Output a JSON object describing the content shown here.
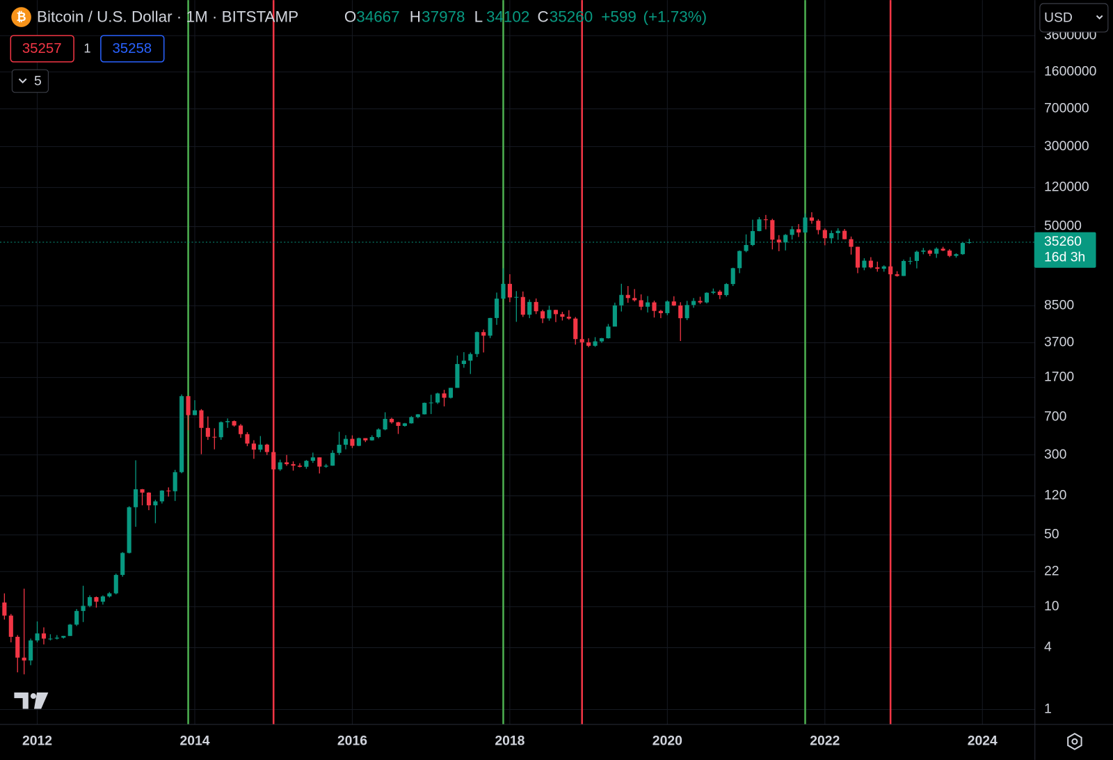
{
  "chart_data": {
    "type": "candlestick",
    "title": "Bitcoin / U.S. Dollar · 1M · BITSTAMP",
    "ohlc_legend": [
      {
        "label": "O",
        "value": 34667
      },
      {
        "label": "H",
        "value": 37978
      },
      {
        "label": "L",
        "value": 34102
      },
      {
        "label": "C",
        "value": 35260
      }
    ],
    "change": {
      "value": 599,
      "label": "+599"
    },
    "change_pct": {
      "value": 1.73,
      "label": "(+1.73%)"
    },
    "sell_price": 35257,
    "quantity": 1,
    "buy_price": 35258,
    "indicators_count": 5,
    "currency": "USD",
    "last_price": 35260,
    "countdown": "16d 3h",
    "up_color": "#089981",
    "down_color": "#f23645",
    "log_scale": true,
    "grid": true,
    "ylim": [
      0.716,
      8000000
    ],
    "yticks": [
      1,
      4,
      10,
      22,
      50,
      120,
      300,
      700,
      1700,
      3700,
      8500,
      50000,
      120000,
      300000,
      700000,
      1600000,
      3600000
    ],
    "xlim": [
      "2011-07",
      "2024-09"
    ],
    "xticks": [
      2012,
      2014,
      2016,
      2018,
      2020,
      2022,
      2024
    ],
    "vlines": [
      {
        "x": "2013-12",
        "color": "#4caf50"
      },
      {
        "x": "2015-01",
        "color": "#f23645"
      },
      {
        "x": "2017-12",
        "color": "#4caf50"
      },
      {
        "x": "2018-12",
        "color": "#f23645"
      },
      {
        "x": "2021-10",
        "color": "#4caf50"
      },
      {
        "x": "2022-11",
        "color": "#f23645"
      }
    ],
    "x": [
      "2011-08",
      "2011-09",
      "2011-10",
      "2011-11",
      "2011-12",
      "2012-01",
      "2012-02",
      "2012-03",
      "2012-04",
      "2012-05",
      "2012-06",
      "2012-07",
      "2012-08",
      "2012-09",
      "2012-10",
      "2012-11",
      "2012-12",
      "2013-01",
      "2013-02",
      "2013-03",
      "2013-04",
      "2013-05",
      "2013-06",
      "2013-07",
      "2013-08",
      "2013-09",
      "2013-10",
      "2013-11",
      "2013-12",
      "2014-01",
      "2014-02",
      "2014-03",
      "2014-04",
      "2014-05",
      "2014-06",
      "2014-07",
      "2014-08",
      "2014-09",
      "2014-10",
      "2014-11",
      "2014-12",
      "2015-01",
      "2015-02",
      "2015-03",
      "2015-04",
      "2015-05",
      "2015-06",
      "2015-07",
      "2015-08",
      "2015-09",
      "2015-10",
      "2015-11",
      "2015-12",
      "2016-01",
      "2016-02",
      "2016-03",
      "2016-04",
      "2016-05",
      "2016-06",
      "2016-07",
      "2016-08",
      "2016-09",
      "2016-10",
      "2016-11",
      "2016-12",
      "2017-01",
      "2017-02",
      "2017-03",
      "2017-04",
      "2017-05",
      "2017-06",
      "2017-07",
      "2017-08",
      "2017-09",
      "2017-10",
      "2017-11",
      "2017-12",
      "2018-01",
      "2018-02",
      "2018-03",
      "2018-04",
      "2018-05",
      "2018-06",
      "2018-07",
      "2018-08",
      "2018-09",
      "2018-10",
      "2018-11",
      "2018-12",
      "2019-01",
      "2019-02",
      "2019-03",
      "2019-04",
      "2019-05",
      "2019-06",
      "2019-07",
      "2019-08",
      "2019-09",
      "2019-10",
      "2019-11",
      "2019-12",
      "2020-01",
      "2020-02",
      "2020-03",
      "2020-04",
      "2020-05",
      "2020-06",
      "2020-07",
      "2020-08",
      "2020-09",
      "2020-10",
      "2020-11",
      "2020-12",
      "2021-01",
      "2021-02",
      "2021-03",
      "2021-04",
      "2021-05",
      "2021-06",
      "2021-07",
      "2021-08",
      "2021-09",
      "2021-10",
      "2021-11",
      "2021-12",
      "2022-01",
      "2022-02",
      "2022-03",
      "2022-04",
      "2022-05",
      "2022-06",
      "2022-07",
      "2022-08",
      "2022-09",
      "2022-10",
      "2022-11",
      "2022-12",
      "2023-01",
      "2023-02",
      "2023-03",
      "2023-04",
      "2023-05",
      "2023-06",
      "2023-07",
      "2023-08",
      "2023-09",
      "2023-10",
      "2023-11"
    ],
    "ohlc": [
      [
        11,
        13.5,
        7.5,
        8.2
      ],
      [
        8.2,
        8.5,
        4.5,
        5.1
      ],
      [
        5.1,
        5.3,
        2.3,
        3.2
      ],
      [
        3.2,
        15,
        2.2,
        3.0
      ],
      [
        3.0,
        4.9,
        2.7,
        4.7
      ],
      [
        4.7,
        7.2,
        4.5,
        5.5
      ],
      [
        5.5,
        6.3,
        4.3,
        4.9
      ],
      [
        4.9,
        5.4,
        4.7,
        4.9
      ],
      [
        4.9,
        5.3,
        4.8,
        5.0
      ],
      [
        5.0,
        5.2,
        4.9,
        5.2
      ],
      [
        5.2,
        6.8,
        5.2,
        6.7
      ],
      [
        6.7,
        9.5,
        6.5,
        9.1
      ],
      [
        9.1,
        16,
        7.1,
        10.2
      ],
      [
        10.2,
        12.9,
        9.9,
        12.4
      ],
      [
        12.4,
        12.6,
        9.8,
        11.2
      ],
      [
        11.2,
        12.9,
        10.5,
        12.6
      ],
      [
        12.6,
        13.9,
        12.3,
        13.5
      ],
      [
        13.5,
        21,
        13.2,
        20.4
      ],
      [
        20.4,
        34,
        19.6,
        33.4
      ],
      [
        33.4,
        95,
        33,
        93
      ],
      [
        93,
        266,
        60,
        139
      ],
      [
        139,
        140,
        97,
        129
      ],
      [
        129,
        130,
        87,
        97
      ],
      [
        97,
        110,
        65,
        106
      ],
      [
        106,
        136,
        101,
        135
      ],
      [
        135,
        145,
        118,
        133
      ],
      [
        133,
        215,
        107,
        204
      ],
      [
        204,
        1163,
        199,
        1120
      ],
      [
        1120,
        1125,
        522,
        732
      ],
      [
        732,
        1022,
        730,
        815
      ],
      [
        815,
        838,
        305,
        550
      ],
      [
        550,
        710,
        420,
        450
      ],
      [
        450,
        545,
        340,
        446
      ],
      [
        446,
        635,
        421,
        625
      ],
      [
        625,
        680,
        550,
        640
      ],
      [
        640,
        650,
        565,
        580
      ],
      [
        580,
        600,
        440,
        478
      ],
      [
        478,
        500,
        365,
        387
      ],
      [
        387,
        417,
        275,
        338
      ],
      [
        338,
        458,
        320,
        378
      ],
      [
        378,
        385,
        300,
        320
      ],
      [
        320,
        320,
        152,
        217
      ],
      [
        217,
        270,
        210,
        254
      ],
      [
        254,
        300,
        235,
        244
      ],
      [
        244,
        260,
        211,
        236
      ],
      [
        236,
        249,
        227,
        230
      ],
      [
        230,
        268,
        220,
        263
      ],
      [
        263,
        316,
        251,
        284
      ],
      [
        284,
        284,
        198,
        231
      ],
      [
        231,
        245,
        225,
        236
      ],
      [
        236,
        333,
        235,
        314
      ],
      [
        314,
        504,
        300,
        377
      ],
      [
        377,
        467,
        340,
        430
      ],
      [
        430,
        465,
        350,
        368
      ],
      [
        368,
        442,
        365,
        437
      ],
      [
        437,
        437,
        400,
        416
      ],
      [
        416,
        466,
        413,
        448
      ],
      [
        448,
        545,
        436,
        531
      ],
      [
        531,
        780,
        521,
        673
      ],
      [
        673,
        690,
        605,
        624
      ],
      [
        624,
        630,
        480,
        575
      ],
      [
        575,
        615,
        566,
        609
      ],
      [
        609,
        717,
        605,
        700
      ],
      [
        700,
        750,
        682,
        745
      ],
      [
        745,
        970,
        742,
        964
      ],
      [
        964,
        1155,
        750,
        970
      ],
      [
        970,
        1210,
        940,
        1190
      ],
      [
        1190,
        1290,
        890,
        1080
      ],
      [
        1080,
        1350,
        1063,
        1348
      ],
      [
        1348,
        2780,
        1350,
        2300
      ],
      [
        2300,
        3000,
        2115,
        2480
      ],
      [
        2480,
        2980,
        1840,
        2875
      ],
      [
        2875,
        4760,
        2690,
        4700
      ],
      [
        4700,
        4980,
        2980,
        4340
      ],
      [
        4340,
        6470,
        4110,
        6450
      ],
      [
        6450,
        11400,
        5530,
        9950
      ],
      [
        9950,
        19666,
        9890,
        13860
      ],
      [
        13860,
        17200,
        9200,
        10220
      ],
      [
        10220,
        11780,
        5920,
        10330
      ],
      [
        10330,
        11680,
        6600,
        6940
      ],
      [
        6940,
        9760,
        6430,
        9240
      ],
      [
        9240,
        9990,
        7040,
        7500
      ],
      [
        7500,
        7760,
        5750,
        6390
      ],
      [
        6390,
        8500,
        6070,
        7730
      ],
      [
        7730,
        7760,
        5880,
        7030
      ],
      [
        7030,
        7410,
        6100,
        6630
      ],
      [
        6630,
        7680,
        6200,
        6370
      ],
      [
        6370,
        6590,
        3550,
        4020
      ],
      [
        4020,
        4240,
        3150,
        3740
      ],
      [
        3740,
        4090,
        3350,
        3460
      ],
      [
        3460,
        4200,
        3380,
        3820
      ],
      [
        3820,
        4130,
        3700,
        4100
      ],
      [
        4100,
        5640,
        4070,
        5320
      ],
      [
        5320,
        9100,
        5340,
        8560
      ],
      [
        8560,
        13880,
        7460,
        10820
      ],
      [
        10820,
        13200,
        9070,
        10080
      ],
      [
        10080,
        12330,
        9330,
        9600
      ],
      [
        9600,
        10950,
        7710,
        8300
      ],
      [
        8300,
        10540,
        7300,
        9150
      ],
      [
        9150,
        9510,
        6520,
        7560
      ],
      [
        7560,
        7740,
        6430,
        7190
      ],
      [
        7190,
        9580,
        6870,
        9350
      ],
      [
        9350,
        10500,
        8440,
        8540
      ],
      [
        8540,
        9180,
        3850,
        6420
      ],
      [
        6420,
        9470,
        6150,
        8630
      ],
      [
        8630,
        10080,
        8110,
        9450
      ],
      [
        9450,
        10380,
        8830,
        9140
      ],
      [
        9140,
        11480,
        8930,
        11350
      ],
      [
        11350,
        12480,
        10980,
        11650
      ],
      [
        11650,
        12070,
        9850,
        10780
      ],
      [
        10780,
        14100,
        10420,
        13800
      ],
      [
        13800,
        19900,
        13200,
        19700
      ],
      [
        19700,
        29300,
        17600,
        28950
      ],
      [
        28950,
        41970,
        28130,
        33100
      ],
      [
        33100,
        58350,
        32300,
        45200
      ],
      [
        45200,
        61780,
        45000,
        58800
      ],
      [
        58800,
        64900,
        47000,
        57800
      ],
      [
        57800,
        59500,
        30000,
        37300
      ],
      [
        37300,
        41300,
        28800,
        35040
      ],
      [
        35040,
        42300,
        29300,
        41500
      ],
      [
        41500,
        50500,
        37400,
        47100
      ],
      [
        47100,
        52900,
        39600,
        43800
      ],
      [
        43800,
        67000,
        43300,
        61300
      ],
      [
        61300,
        69000,
        53300,
        57000
      ],
      [
        57000,
        59100,
        42000,
        46300
      ],
      [
        46300,
        47900,
        32900,
        38500
      ],
      [
        38500,
        45800,
        34300,
        43200
      ],
      [
        43200,
        48200,
        37200,
        45500
      ],
      [
        45500,
        47400,
        37600,
        37700
      ],
      [
        37700,
        40000,
        26700,
        31800
      ],
      [
        31800,
        31900,
        17600,
        19950
      ],
      [
        19950,
        24600,
        18800,
        23300
      ],
      [
        23300,
        25200,
        19600,
        20050
      ],
      [
        20050,
        22800,
        18200,
        19420
      ],
      [
        19420,
        21000,
        18200,
        20490
      ],
      [
        20490,
        21500,
        15500,
        17170
      ],
      [
        17170,
        18400,
        16300,
        16540
      ],
      [
        16540,
        23900,
        16500,
        23130
      ],
      [
        23130,
        25250,
        21400,
        23150
      ],
      [
        23150,
        29200,
        19600,
        28470
      ],
      [
        28470,
        31000,
        26900,
        29250
      ],
      [
        29250,
        29850,
        25800,
        27210
      ],
      [
        27210,
        31400,
        24800,
        30470
      ],
      [
        30470,
        31800,
        28900,
        29230
      ],
      [
        29230,
        30200,
        25200,
        25940
      ],
      [
        25940,
        27500,
        24900,
        26960
      ],
      [
        26960,
        35200,
        26540,
        34660
      ],
      [
        34667,
        37978,
        34102,
        35260
      ]
    ]
  }
}
